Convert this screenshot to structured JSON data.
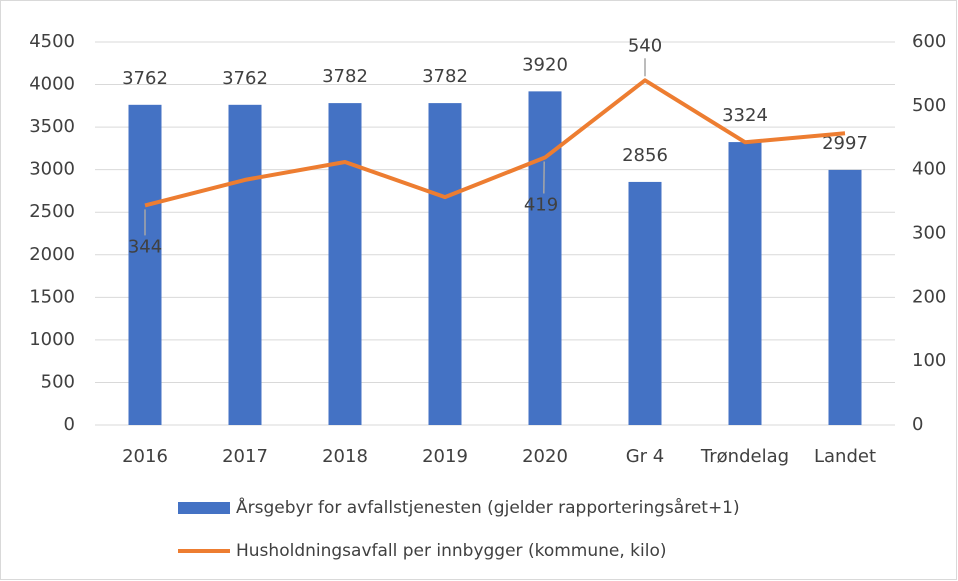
{
  "chart_data": {
    "type": "bar_line",
    "categories": [
      "2016",
      "2017",
      "2018",
      "2019",
      "2020",
      "Gr 4",
      "Trøndelag",
      "Landet"
    ],
    "series": [
      {
        "name": "Årsgebyr for avfallstjenesten (gjelder rapporteringsåret+1)",
        "color": "#4472c4",
        "type": "bar",
        "values": [
          3762,
          3762,
          3782,
          3782,
          3920,
          2856,
          3324,
          2997
        ]
      },
      {
        "name": "Husholdningsavfall per innbygger (kommune, kilo)",
        "color": "#ed7d31",
        "type": "line",
        "axis": "y2",
        "values": [
          344,
          384,
          412,
          357,
          419,
          540,
          443,
          457
        ],
        "value_labels": [
          "344",
          null,
          null,
          null,
          "419",
          "540",
          null,
          null
        ]
      }
    ],
    "ylim": [
      0,
      4500
    ],
    "yticks": [
      0,
      500,
      1000,
      1500,
      2000,
      2500,
      3000,
      3500,
      4000,
      4500
    ],
    "y2lim": [
      0,
      600
    ],
    "y2ticks": [
      0,
      100,
      200,
      300,
      400,
      500,
      600
    ],
    "grid": true,
    "legend": "bottom"
  }
}
